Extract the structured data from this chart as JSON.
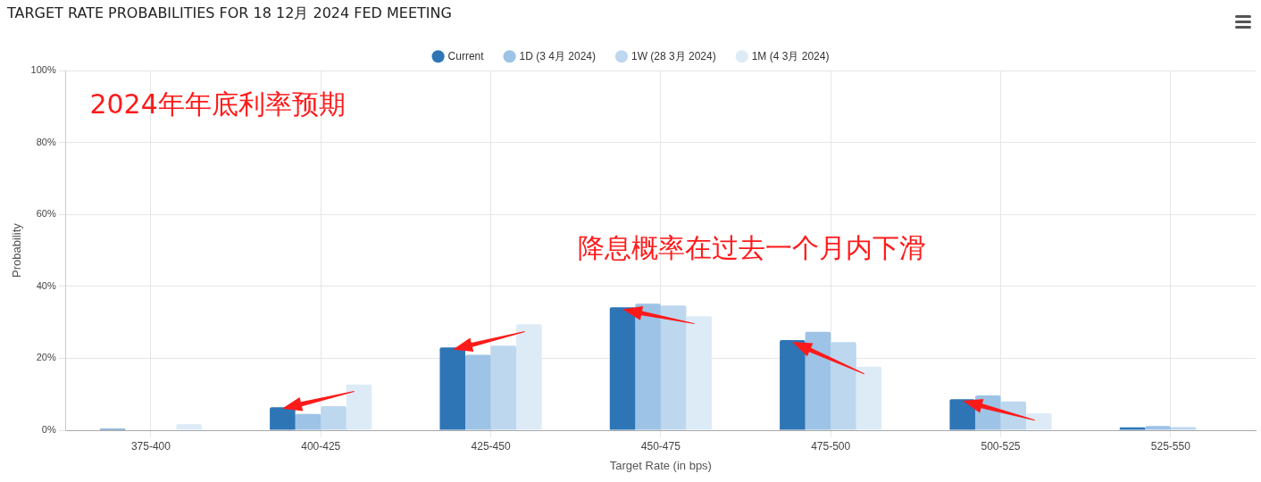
{
  "chart_data": {
    "type": "bar",
    "title": "TARGET RATE PROBABILITIES FOR 18 12月 2024 FED MEETING",
    "xlabel": "Target Rate (in bps)",
    "ylabel": "Probability",
    "categories": [
      "375-400",
      "400-425",
      "425-450",
      "450-475",
      "475-500",
      "500-525",
      "525-550"
    ],
    "series": [
      {
        "name": "Current",
        "color": "#2e75b6",
        "values": [
          0.4,
          6.4,
          23,
          34.2,
          25.1,
          8.6,
          0.8
        ]
      },
      {
        "name": "1D (3 4月 2024)",
        "color": "#9dc3e6",
        "values": [
          0,
          4.5,
          21,
          35.2,
          27.4,
          9.7,
          1.2
        ]
      },
      {
        "name": "1W (28 3月 2024)",
        "color": "#bdd7ee",
        "values": [
          null,
          6.7,
          23.5,
          34.7,
          24.5,
          8,
          0.9
        ]
      },
      {
        "name": "1M (4 3月 2024)",
        "color": "#ddebf7",
        "values": [
          1.7,
          12.7,
          29.5,
          31.7,
          17.7,
          4.7,
          0.1
        ]
      }
    ],
    "ylim": [
      0,
      100
    ],
    "yticks": [
      {
        "value": 0,
        "label": "0%"
      },
      {
        "value": 20,
        "label": "20%"
      },
      {
        "value": 40,
        "label": "40%"
      },
      {
        "value": 60,
        "label": "60%"
      },
      {
        "value": 80,
        "label": "80%"
      },
      {
        "value": 100,
        "label": "100%"
      }
    ],
    "grid": true,
    "legend": "top",
    "annotations": [
      "2024年年底利率预期",
      "降息概率在过去一个月内下滑"
    ]
  }
}
